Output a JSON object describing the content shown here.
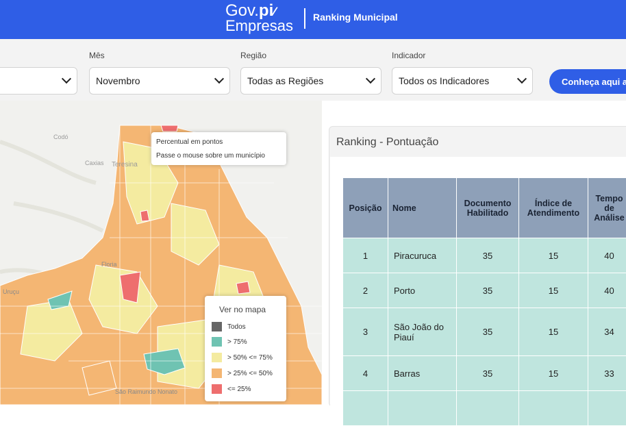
{
  "header": {
    "logo_top_regular": "Gov.",
    "logo_top_bold": "pi",
    "logo_bottom": "Empresas",
    "title": "Ranking Municipal"
  },
  "filters": {
    "ano": {
      "label": "",
      "value": ""
    },
    "mes": {
      "label": "Mês",
      "value": "Novembro"
    },
    "regiao": {
      "label": "Região",
      "value": "Todas as Regiões"
    },
    "indicador": {
      "label": "Indicador",
      "value": "Todos os Indicadores"
    },
    "cta_label": "Conheça aqui a"
  },
  "map": {
    "place_labels": [
      "Codó",
      "Caxias",
      "Teresina",
      "Floria",
      "Uruçu",
      "São Raimundo Nonato"
    ],
    "tooltip": {
      "line1": "Percentual em pontos",
      "line2": "Passe o mouse sobre um município"
    },
    "legend": {
      "title": "Ver no mapa",
      "items": [
        {
          "label": "Todos",
          "color": "#666666"
        },
        {
          "label": "> 75%",
          "color": "#6fc3b2"
        },
        {
          "label": "> 50% <= 75%",
          "color": "#f4eba0"
        },
        {
          "label": "> 25% <= 50%",
          "color": "#f4b673"
        },
        {
          "label": "<= 25%",
          "color": "#ee6e6e"
        }
      ]
    }
  },
  "ranking": {
    "title": "Ranking - Pontuação",
    "columns": [
      "Posição",
      "Nome",
      "Documento Habilitado",
      "Índice de Atendimento",
      "Tempo de Análise"
    ],
    "rows": [
      {
        "pos": "1",
        "nome": "Piracuruca",
        "doc": "35",
        "ind": "15",
        "tempo": "40"
      },
      {
        "pos": "2",
        "nome": "Porto",
        "doc": "35",
        "ind": "15",
        "tempo": "40"
      },
      {
        "pos": "3",
        "nome": "São João do Piauí",
        "doc": "35",
        "ind": "15",
        "tempo": "34"
      },
      {
        "pos": "4",
        "nome": "Barras",
        "doc": "35",
        "ind": "15",
        "tempo": "33"
      }
    ]
  }
}
